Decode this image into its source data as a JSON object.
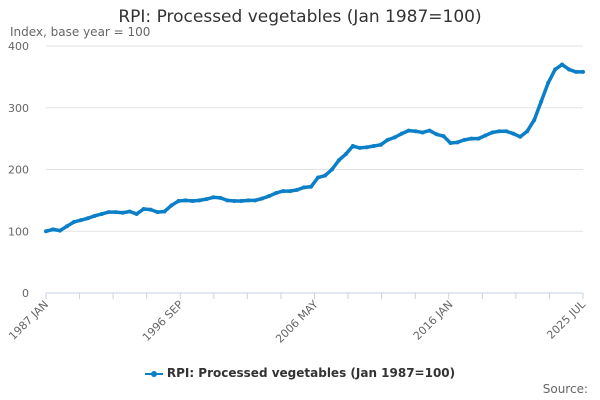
{
  "chart_data": {
    "type": "line",
    "title": "RPI: Processed vegetables (Jan 1987=100)",
    "subtitle": "Index, base year = 100",
    "xlabel": "",
    "ylabel": "",
    "x_range": [
      "1987-01",
      "2025-07"
    ],
    "ylim": [
      0,
      400
    ],
    "yticks": [
      0,
      100,
      200,
      300,
      400
    ],
    "xtick_labels": [
      {
        "date": "1987-01",
        "label": "1987 JAN"
      },
      {
        "date": "1996-09",
        "label": "1996 SEP"
      },
      {
        "date": "2006-05",
        "label": "2006 MAY"
      },
      {
        "date": "2016-01",
        "label": "2016 JAN"
      },
      {
        "date": "2025-07",
        "label": "2025 JUL"
      }
    ],
    "grid": true,
    "legend_position": "bottom",
    "color": "#0b7fc7",
    "series": [
      {
        "name": "RPI: Processed vegetables (Jan 1987=100)",
        "x": [
          "1987-01",
          "1987-07",
          "1988-01",
          "1988-07",
          "1989-01",
          "1989-07",
          "1990-01",
          "1990-07",
          "1991-01",
          "1991-07",
          "1992-01",
          "1992-07",
          "1993-01",
          "1993-07",
          "1994-01",
          "1994-07",
          "1995-01",
          "1995-07",
          "1996-01",
          "1996-07",
          "1997-01",
          "1997-07",
          "1998-01",
          "1998-07",
          "1999-01",
          "1999-07",
          "2000-01",
          "2000-07",
          "2001-01",
          "2001-07",
          "2002-01",
          "2002-07",
          "2003-01",
          "2003-07",
          "2004-01",
          "2004-07",
          "2005-01",
          "2005-07",
          "2006-01",
          "2006-07",
          "2007-01",
          "2007-07",
          "2008-01",
          "2008-07",
          "2009-01",
          "2009-07",
          "2010-01",
          "2010-07",
          "2011-01",
          "2011-07",
          "2012-01",
          "2012-07",
          "2013-01",
          "2013-07",
          "2014-01",
          "2014-07",
          "2015-01",
          "2015-07",
          "2016-01",
          "2016-07",
          "2017-01",
          "2017-07",
          "2018-01",
          "2018-07",
          "2019-01",
          "2019-07",
          "2020-01",
          "2020-07",
          "2021-01",
          "2021-07",
          "2022-01",
          "2022-07",
          "2023-01",
          "2023-07",
          "2024-01",
          "2024-07",
          "2025-01",
          "2025-07"
        ],
        "values": [
          100,
          103,
          101,
          108,
          115,
          118,
          121,
          125,
          128,
          131,
          131,
          130,
          132,
          128,
          136,
          135,
          131,
          132,
          142,
          149,
          150,
          149,
          150,
          152,
          155,
          154,
          150,
          149,
          149,
          150,
          150,
          153,
          157,
          162,
          165,
          165,
          167,
          171,
          172,
          187,
          190,
          200,
          215,
          225,
          238,
          235,
          236,
          238,
          240,
          248,
          252,
          258,
          263,
          262,
          260,
          263,
          257,
          254,
          243,
          244,
          248,
          250,
          250,
          255,
          260,
          262,
          262,
          258,
          253,
          262,
          280,
          310,
          340,
          362,
          370,
          362,
          358,
          358
        ]
      }
    ]
  },
  "source_label": "Source:"
}
